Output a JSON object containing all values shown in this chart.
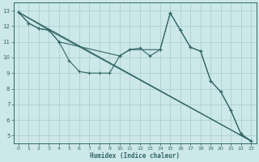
{
  "bg_color": "#cce8e8",
  "grid_color": "#b0d4d4",
  "line_color": "#336666",
  "xlabel": "Humidex (Indice chaleur)",
  "xlim": [
    -0.5,
    23.5
  ],
  "ylim": [
    4.5,
    13.5
  ],
  "yticks": [
    5,
    6,
    7,
    8,
    9,
    10,
    11,
    12,
    13
  ],
  "xticks": [
    0,
    1,
    2,
    3,
    4,
    5,
    6,
    7,
    8,
    9,
    10,
    11,
    12,
    13,
    14,
    15,
    16,
    17,
    18,
    19,
    20,
    21,
    22,
    23
  ],
  "line1_x": [
    0,
    1,
    2,
    3,
    4,
    5,
    6,
    7,
    8,
    9,
    10,
    11,
    12,
    13,
    14,
    15,
    16,
    17,
    18,
    19,
    20,
    21,
    22,
    23
  ],
  "line1_y": [
    12.9,
    12.2,
    11.85,
    11.75,
    11.0,
    9.8,
    9.1,
    9.0,
    9.0,
    9.0,
    10.1,
    10.5,
    10.6,
    10.1,
    10.5,
    12.85,
    11.75,
    10.65,
    10.4,
    8.5,
    7.8,
    6.6,
    5.1,
    4.65
  ],
  "line2_x": [
    0,
    1,
    2,
    3,
    4,
    10,
    11,
    14,
    15,
    16,
    17,
    18,
    19,
    20,
    21,
    22,
    23
  ],
  "line2_y": [
    12.9,
    12.2,
    11.85,
    11.75,
    11.0,
    10.1,
    10.5,
    10.5,
    12.85,
    11.75,
    10.65,
    10.4,
    8.5,
    7.8,
    6.6,
    5.1,
    4.65
  ],
  "line3_x": [
    0,
    23
  ],
  "line3_y": [
    12.9,
    4.65
  ],
  "line4_x": [
    0,
    3,
    23
  ],
  "line4_y": [
    12.9,
    11.75,
    4.65
  ]
}
